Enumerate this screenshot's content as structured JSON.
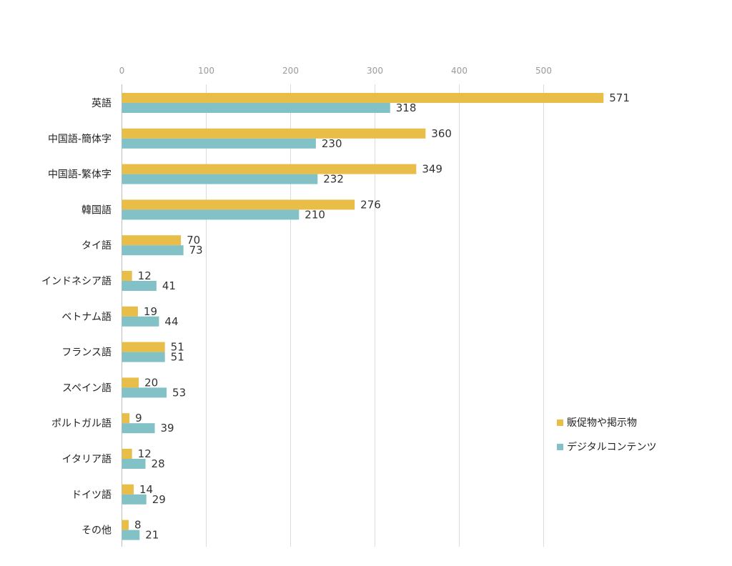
{
  "chart_data": {
    "type": "bar",
    "orientation": "horizontal",
    "categories": [
      "英語",
      "中国語-簡体字",
      "中国語-繁体字",
      "韓国語",
      "タイ語",
      "インドネシア語",
      "ベトナム語",
      "フランス語",
      "スペイン語",
      "ポルトガル語",
      "イタリア語",
      "ドイツ語",
      "その他"
    ],
    "series": [
      {
        "name": "販促物や掲示物",
        "color": "#E8BD48",
        "values": [
          571,
          360,
          349,
          276,
          70,
          12,
          19,
          51,
          20,
          9,
          12,
          14,
          8
        ]
      },
      {
        "name": "デジタルコンテンツ",
        "color": "#82C1C6",
        "values": [
          318,
          230,
          232,
          210,
          73,
          41,
          44,
          51,
          53,
          39,
          28,
          29,
          21
        ]
      }
    ],
    "xlim": [
      0,
      600
    ],
    "xticks": [
      0,
      100,
      200,
      300,
      400,
      500
    ],
    "xaxis_position": "top",
    "grid": "vertical",
    "legend_position": "right",
    "title": "",
    "xlabel": "",
    "ylabel": ""
  }
}
